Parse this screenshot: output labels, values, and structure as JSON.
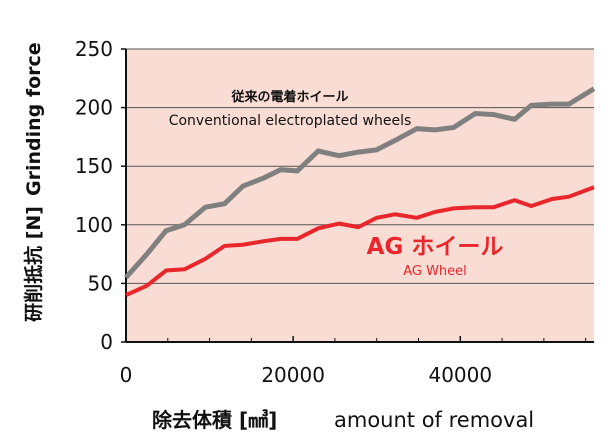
{
  "chart_data": {
    "type": "line",
    "ylabel_jp": "研削抵抗 [N]",
    "ylabel_en": "Grinding force",
    "xlabel_jp": "除去体積 [㎣]",
    "xlabel_en": "amount of removal",
    "xlim": [
      0,
      56000
    ],
    "ylim": [
      0,
      250
    ],
    "y_ticks": [
      "0",
      "50",
      "100",
      "150",
      "200",
      "250"
    ],
    "y_tick_values": [
      0,
      50,
      100,
      150,
      200,
      250
    ],
    "x_ticks": [
      "0",
      "20000",
      "40000"
    ],
    "x_tick_values": [
      0,
      20000,
      40000
    ],
    "grid": "horizontal",
    "legend": "none",
    "plot_background": "#f9dcd4",
    "series": [
      {
        "name": "Conventional electroplated wheels",
        "name_jp": "従来の電着ホイール",
        "color": "#808080",
        "x": [
          0,
          2500,
          4800,
          7000,
          9500,
          11800,
          14000,
          16500,
          18500,
          20500,
          23000,
          25500,
          27800,
          30000,
          32200,
          34800,
          37000,
          39200,
          41800,
          44000,
          46500,
          48500,
          51000,
          53000,
          56000
        ],
        "y": [
          55,
          75,
          95,
          100,
          115,
          118,
          133,
          140,
          147,
          146,
          163,
          159,
          162,
          164,
          172,
          182,
          181,
          183,
          195,
          194,
          190,
          202,
          203,
          203,
          216
        ]
      },
      {
        "name": "AG Wheel",
        "name_jp": "AG ホイール",
        "color": "#e8262b",
        "x": [
          0,
          2500,
          4800,
          7000,
          9500,
          11800,
          14000,
          16500,
          18500,
          20500,
          23000,
          25500,
          27800,
          30000,
          32200,
          34800,
          37000,
          39200,
          41800,
          44000,
          46500,
          48500,
          51000,
          53000,
          56000
        ],
        "y": [
          40,
          48,
          61,
          62,
          71,
          82,
          83,
          86,
          88,
          88,
          97,
          101,
          98,
          106,
          109,
          106,
          111,
          114,
          115,
          115,
          121,
          116,
          122,
          124,
          132
        ]
      }
    ]
  }
}
